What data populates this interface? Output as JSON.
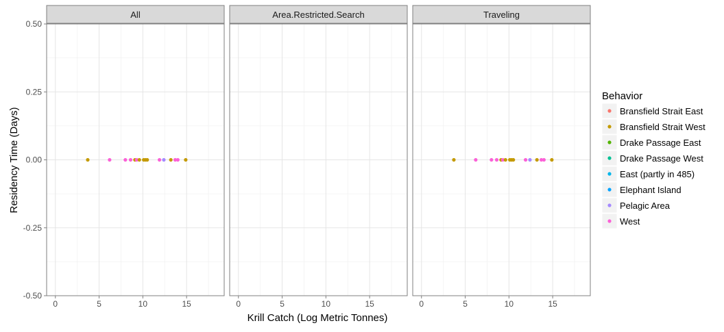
{
  "chart_data": {
    "type": "scatter",
    "xlabel": "Krill Catch (Log Metric Tonnes)",
    "ylabel": "Residency Time (Days)",
    "xlim": [
      -1,
      19.3
    ],
    "ylim": [
      -0.5,
      0.5
    ],
    "x_ticks": [
      "0",
      "5",
      "10",
      "15"
    ],
    "x_tick_values": [
      0,
      5,
      10,
      15
    ],
    "y_ticks": [
      "0.50",
      "0.25",
      "0.00",
      "-0.25",
      "-0.50"
    ],
    "y_tick_values": [
      0.5,
      0.25,
      0,
      -0.25,
      -0.5
    ],
    "grid": true,
    "legend_position": "right",
    "legend": {
      "title": "Behavior",
      "entries": [
        {
          "name": "Bransfield Strait East",
          "color": "#F8766D"
        },
        {
          "name": "Bransfield Strait West",
          "color": "#C49A00"
        },
        {
          "name": "Drake Passage East",
          "color": "#53B400"
        },
        {
          "name": "Drake Passage West",
          "color": "#00C094"
        },
        {
          "name": "East (partly in 485)",
          "color": "#00B6EB"
        },
        {
          "name": "Elephant Island",
          "color": "#06A4FF"
        },
        {
          "name": "Pelagic Area",
          "color": "#A58AFF"
        },
        {
          "name": "West",
          "color": "#FB61D7"
        }
      ]
    },
    "panels": [
      {
        "title": "All",
        "points": [
          {
            "x": 3.7,
            "y": 0,
            "group": "Bransfield Strait West"
          },
          {
            "x": 6.2,
            "y": 0,
            "group": "West"
          },
          {
            "x": 8.0,
            "y": 0,
            "group": "West"
          },
          {
            "x": 8.6,
            "y": 0,
            "group": "West"
          },
          {
            "x": 9.1,
            "y": 0,
            "group": "Bransfield Strait West"
          },
          {
            "x": 9.3,
            "y": 0,
            "group": "West"
          },
          {
            "x": 9.6,
            "y": 0,
            "group": "Bransfield Strait West"
          },
          {
            "x": 10.1,
            "y": 0,
            "group": "Bransfield Strait West"
          },
          {
            "x": 10.3,
            "y": 0,
            "group": "Bransfield Strait West"
          },
          {
            "x": 10.5,
            "y": 0,
            "group": "Bransfield Strait West"
          },
          {
            "x": 11.9,
            "y": 0,
            "group": "West"
          },
          {
            "x": 12.4,
            "y": 0,
            "group": "Pelagic Area"
          },
          {
            "x": 13.2,
            "y": 0,
            "group": "Bransfield Strait West"
          },
          {
            "x": 13.7,
            "y": 0,
            "group": "West"
          },
          {
            "x": 14.0,
            "y": 0,
            "group": "West"
          },
          {
            "x": 14.9,
            "y": 0,
            "group": "Bransfield Strait West"
          }
        ]
      },
      {
        "title": "Area.Restricted.Search",
        "points": []
      },
      {
        "title": "Traveling",
        "points": [
          {
            "x": 3.7,
            "y": 0,
            "group": "Bransfield Strait West"
          },
          {
            "x": 6.2,
            "y": 0,
            "group": "West"
          },
          {
            "x": 8.0,
            "y": 0,
            "group": "West"
          },
          {
            "x": 8.6,
            "y": 0,
            "group": "West"
          },
          {
            "x": 9.1,
            "y": 0,
            "group": "Bransfield Strait West"
          },
          {
            "x": 9.3,
            "y": 0,
            "group": "West"
          },
          {
            "x": 9.6,
            "y": 0,
            "group": "Bransfield Strait West"
          },
          {
            "x": 10.1,
            "y": 0,
            "group": "Bransfield Strait West"
          },
          {
            "x": 10.3,
            "y": 0,
            "group": "Bransfield Strait West"
          },
          {
            "x": 10.5,
            "y": 0,
            "group": "Bransfield Strait West"
          },
          {
            "x": 11.9,
            "y": 0,
            "group": "West"
          },
          {
            "x": 12.4,
            "y": 0,
            "group": "Pelagic Area"
          },
          {
            "x": 13.2,
            "y": 0,
            "group": "Bransfield Strait West"
          },
          {
            "x": 13.7,
            "y": 0,
            "group": "West"
          },
          {
            "x": 14.0,
            "y": 0,
            "group": "West"
          },
          {
            "x": 14.9,
            "y": 0,
            "group": "Bransfield Strait West"
          }
        ]
      }
    ]
  }
}
